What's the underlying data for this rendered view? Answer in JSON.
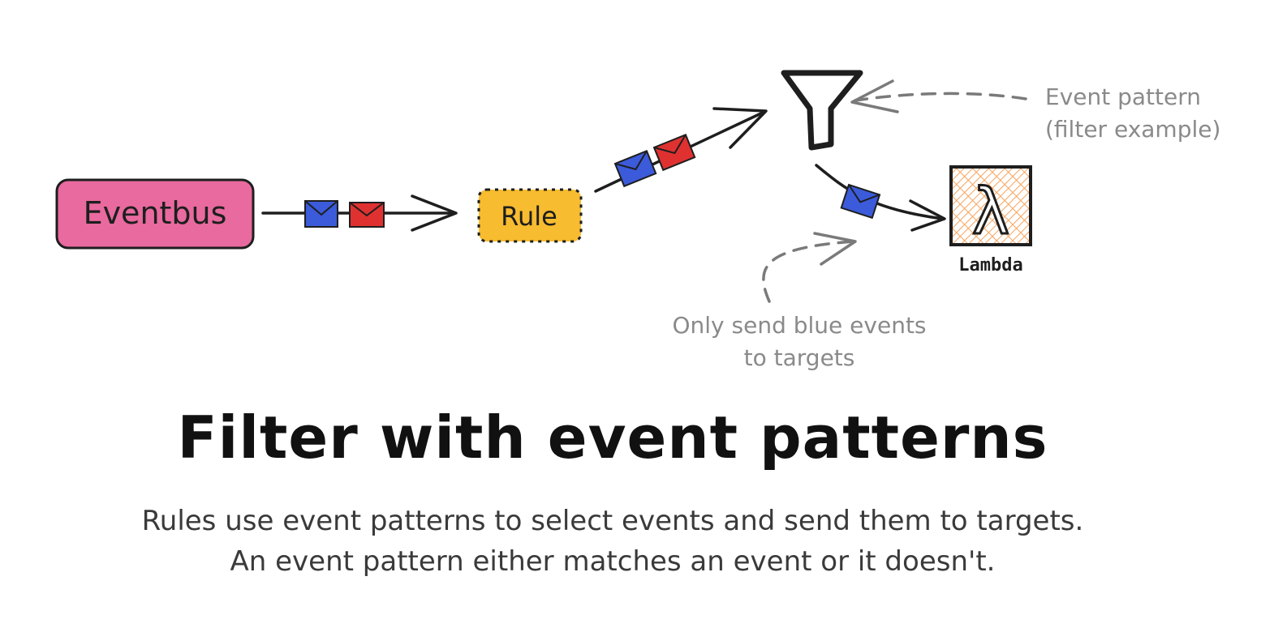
{
  "diagram": {
    "eventbus_label": "Eventbus",
    "rule_label": "Rule",
    "lambda_label": "Lambda",
    "lambda_symbol": "λ",
    "filter_note_line1": "Event pattern",
    "filter_note_line2": "(filter example)",
    "blue_note_line1": "Only send blue events",
    "blue_note_line2": "to targets"
  },
  "title": "Filter with event patterns",
  "subtitle_line1": "Rules use event patterns to select events and send them to targets.",
  "subtitle_line2": "An event pattern either matches an event or it doesn't.",
  "colors": {
    "eventbus_fill": "#e86a9e",
    "rule_fill": "#f7bc2f",
    "blue_event": "#3b5bdb",
    "red_event": "#e03131",
    "lambda_hatch": "#f7a35c",
    "stroke": "#1e1e1e",
    "note_text": "#8a8a8a"
  }
}
